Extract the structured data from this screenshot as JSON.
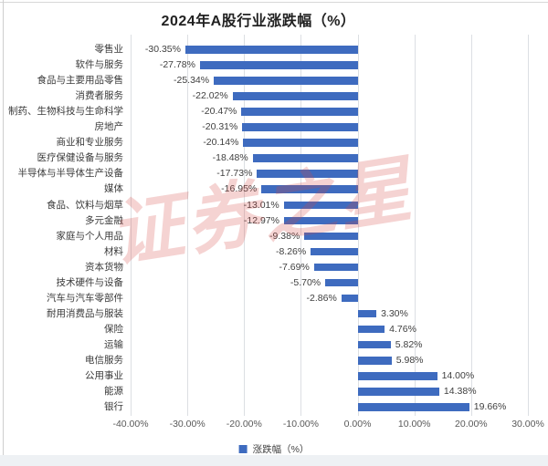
{
  "title": "2024年A股行业涨跌幅（%）",
  "watermark_text": "证券之星",
  "colors": {
    "bar": "#3E6BBF",
    "gridline": "#dcdfe3",
    "tick_text": "#595959",
    "label_text": "#3a3a3a",
    "title_text": "#222222",
    "watermark": "rgba(214,72,66,0.24)"
  },
  "legend": {
    "label": "涨跌幅（%）"
  },
  "chart_data": {
    "type": "bar",
    "orientation": "horizontal",
    "title": "2024年A股行业涨跌幅（%）",
    "categories": [
      "零售业",
      "软件与服务",
      "食品与主要用品零售",
      "消费者服务",
      "制药、生物科技与生命科学",
      "房地产",
      "商业和专业服务",
      "医疗保健设备与服务",
      "半导体与半导体生产设备",
      "媒体",
      "食品、饮料与烟草",
      "多元金融",
      "家庭与个人用品",
      "材料",
      "资本货物",
      "技术硬件与设备",
      "汽车与汽车零部件",
      "耐用消费品与服装",
      "保险",
      "运输",
      "电信服务",
      "公用事业",
      "能源",
      "银行"
    ],
    "values": [
      -30.35,
      -27.78,
      -25.34,
      -22.02,
      -20.47,
      -20.31,
      -20.14,
      -18.48,
      -17.73,
      -16.95,
      -13.01,
      -12.97,
      -9.38,
      -8.26,
      -7.69,
      -5.7,
      -2.86,
      3.3,
      4.76,
      5.82,
      5.98,
      14.0,
      14.38,
      19.66
    ],
    "value_labels": [
      "-30.35%",
      "-27.78%",
      "-25.34%",
      "-22.02%",
      "-20.47%",
      "-20.31%",
      "-20.14%",
      "-18.48%",
      "-17.73%",
      "-16.95%",
      "-13.01%",
      "-12.97%",
      "-9.38%",
      "-8.26%",
      "-7.69%",
      "-5.70%",
      "-2.86%",
      "3.30%",
      "4.76%",
      "5.82%",
      "5.98%",
      "14.00%",
      "14.38%",
      "19.66%"
    ],
    "xlim": [
      -40,
      30
    ],
    "ticks": [
      {
        "v": -40,
        "label": "-40.00%"
      },
      {
        "v": -30,
        "label": "-30.00%"
      },
      {
        "v": -20,
        "label": "-20.00%"
      },
      {
        "v": -10,
        "label": "-10.00%"
      },
      {
        "v": 0,
        "label": "0.00%"
      },
      {
        "v": 10,
        "label": "10.00%"
      },
      {
        "v": 20,
        "label": "20.00%"
      },
      {
        "v": 30,
        "label": "30.00%"
      }
    ],
    "grid": "vertical",
    "legend_position": "bottom",
    "bar_color": "#3E6BBF"
  }
}
